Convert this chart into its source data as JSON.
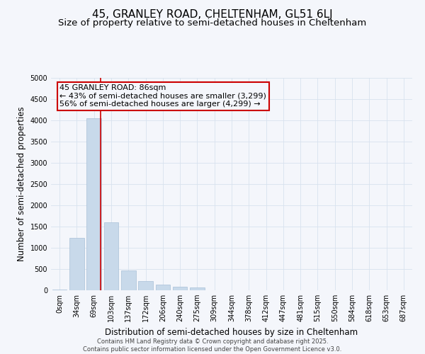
{
  "title": "45, GRANLEY ROAD, CHELTENHAM, GL51 6LJ",
  "subtitle": "Size of property relative to semi-detached houses in Cheltenham",
  "xlabel": "Distribution of semi-detached houses by size in Cheltenham",
  "ylabel": "Number of semi-detached properties",
  "categories": [
    "0sqm",
    "34sqm",
    "69sqm",
    "103sqm",
    "137sqm",
    "172sqm",
    "206sqm",
    "240sqm",
    "275sqm",
    "309sqm",
    "344sqm",
    "378sqm",
    "412sqm",
    "447sqm",
    "481sqm",
    "515sqm",
    "550sqm",
    "584sqm",
    "618sqm",
    "653sqm",
    "687sqm"
  ],
  "values": [
    10,
    1230,
    4050,
    1600,
    460,
    210,
    130,
    90,
    65,
    0,
    0,
    0,
    0,
    0,
    0,
    0,
    0,
    0,
    0,
    0,
    0
  ],
  "bar_color": "#c8d9ea",
  "bar_edge_color": "#a8c0d8",
  "grid_color": "#d8e2ef",
  "background_color": "#f4f6fb",
  "annotation_line1": "45 GRANLEY ROAD: 86sqm",
  "annotation_line2": "← 43% of semi-detached houses are smaller (3,299)",
  "annotation_line3": "56% of semi-detached houses are larger (4,299) →",
  "annotation_box_color": "#cc0000",
  "vline_x": 2.38,
  "vline_color": "#cc0000",
  "ylim": [
    0,
    5000
  ],
  "yticks": [
    0,
    500,
    1000,
    1500,
    2000,
    2500,
    3000,
    3500,
    4000,
    4500,
    5000
  ],
  "footer_text": "Contains HM Land Registry data © Crown copyright and database right 2025.\nContains public sector information licensed under the Open Government Licence v3.0.",
  "title_fontsize": 11,
  "subtitle_fontsize": 9.5,
  "axis_label_fontsize": 8.5,
  "tick_fontsize": 7,
  "annotation_fontsize": 8,
  "footer_fontsize": 6
}
